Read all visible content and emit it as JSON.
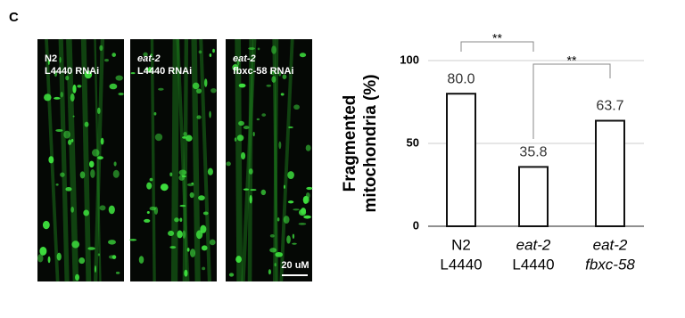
{
  "panel": "C",
  "images": [
    {
      "lines": [
        "N2",
        "L4440 RNAi"
      ]
    },
    {
      "lines": [
        "eat-2",
        "L4440 RNAi"
      ]
    },
    {
      "lines": [
        "eat-2",
        "fbxc-58 RNAi"
      ]
    }
  ],
  "scale_bar": "20 uM",
  "chart_data": {
    "type": "bar",
    "y_label": [
      "Fragmented",
      "mitochondria (%)"
    ],
    "categories": [
      [
        "N2",
        "L4440"
      ],
      [
        "eat-2",
        "L4440"
      ],
      [
        "eat-2",
        "fbxc-58"
      ]
    ],
    "values": [
      80.0,
      35.8,
      63.7
    ],
    "value_labels": [
      "80.0",
      "35.8",
      "63.7"
    ],
    "color": "#ffffff",
    "ylim": [
      0,
      100
    ],
    "yticks": [
      0,
      50,
      100
    ],
    "grid": true,
    "annotations": [
      "**",
      "**"
    ]
  }
}
